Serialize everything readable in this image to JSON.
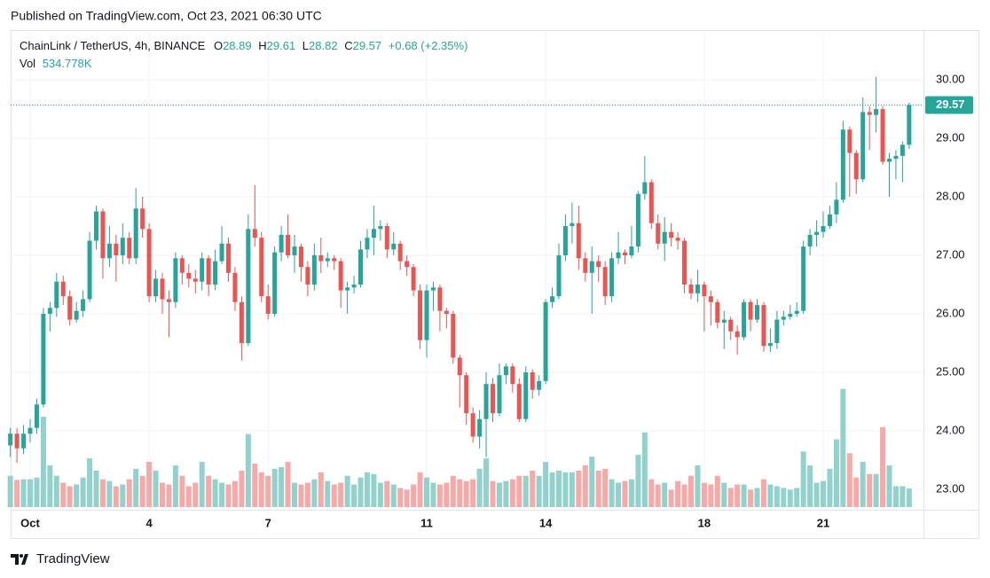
{
  "published": "Published on TradingView.com, Oct 23, 2021 06:30 UTC",
  "brand": "TradingView",
  "chart_data": {
    "type": "candlestick",
    "title": "ChainLink / TetherUS, 4h, BINANCE",
    "ohlc_labels": {
      "open": "O",
      "high": "H",
      "low": "L",
      "close": "C"
    },
    "change_label": "+0.68",
    "change_pct_label": "(+2.35%)",
    "volume_label": "Vol",
    "volume_value_label": "534.778K",
    "up_color": "#26a69a",
    "down_color": "#ef5350",
    "up_volume_color": "#92d2cc",
    "down_volume_color": "#f7a9a7",
    "grid": true,
    "ylim": [
      22.65,
      30.85
    ],
    "yticks": [
      {
        "value": 23,
        "label": "23.00"
      },
      {
        "value": 24,
        "label": "24.00"
      },
      {
        "value": 25,
        "label": "25.00"
      },
      {
        "value": 26,
        "label": "26.00"
      },
      {
        "value": 27,
        "label": "27.00"
      },
      {
        "value": 28,
        "label": "28.00"
      },
      {
        "value": 29,
        "label": "29.00"
      },
      {
        "value": 30,
        "label": "30.00"
      }
    ],
    "categories": [
      null,
      null,
      null,
      "Oct",
      null,
      null,
      null,
      null,
      null,
      null,
      null,
      null,
      null,
      null,
      null,
      null,
      null,
      null,
      null,
      null,
      null,
      "4",
      null,
      null,
      null,
      null,
      null,
      null,
      null,
      null,
      null,
      null,
      null,
      null,
      null,
      null,
      null,
      null,
      null,
      "7",
      null,
      null,
      null,
      null,
      null,
      null,
      null,
      null,
      null,
      null,
      null,
      null,
      null,
      null,
      null,
      null,
      null,
      null,
      null,
      null,
      null,
      null,
      null,
      "11",
      null,
      null,
      null,
      null,
      null,
      null,
      null,
      null,
      null,
      null,
      null,
      null,
      null,
      null,
      null,
      null,
      null,
      "14",
      null,
      null,
      null,
      null,
      null,
      null,
      null,
      null,
      null,
      null,
      null,
      null,
      null,
      null,
      null,
      null,
      null,
      null,
      null,
      null,
      null,
      null,
      null,
      "18",
      null,
      null,
      null,
      null,
      null,
      null,
      null,
      null,
      null,
      null,
      null,
      null,
      null,
      null,
      null,
      null,
      null,
      "21",
      null,
      null,
      null,
      null,
      null,
      null,
      null,
      null,
      null,
      null,
      null,
      null,
      null
    ],
    "open": [
      23.75,
      23.95,
      23.7,
      23.95,
      24.05,
      24.45,
      26.0,
      26.1,
      26.55,
      26.3,
      25.9,
      26.05,
      26.25,
      27.25,
      27.75,
      26.95,
      27.2,
      27.0,
      27.3,
      26.95,
      27.8,
      27.45,
      26.3,
      26.6,
      26.25,
      26.2,
      26.95,
      26.7,
      26.6,
      26.55,
      26.95,
      26.5,
      26.9,
      27.2,
      26.7,
      26.2,
      25.5,
      27.45,
      27.3,
      26.3,
      26.0,
      27.05,
      27.35,
      27.0,
      27.15,
      26.8,
      26.5,
      27.0,
      26.9,
      26.95,
      26.9,
      26.4,
      26.45,
      26.5,
      27.1,
      27.3,
      27.45,
      27.5,
      27.1,
      27.2,
      26.9,
      26.8,
      26.4,
      25.55,
      26.4,
      26.45,
      26.05,
      26.0,
      25.25,
      24.95,
      24.3,
      23.9,
      24.2,
      24.8,
      24.3,
      24.95,
      25.1,
      24.8,
      24.2,
      25.0,
      24.7,
      24.85,
      26.2,
      26.3,
      27.0,
      27.5,
      27.55,
      26.95,
      26.7,
      26.9,
      26.8,
      26.3,
      26.95,
      27.05,
      27.0,
      27.15,
      28.05,
      28.25,
      27.55,
      27.2,
      27.4,
      27.3,
      27.25,
      26.5,
      26.35,
      26.5,
      26.3,
      26.2,
      25.85,
      25.9,
      25.7,
      25.6,
      26.2,
      25.9,
      26.15,
      25.45,
      25.5,
      25.9,
      25.95,
      26.0,
      26.05,
      27.15,
      27.35,
      27.4,
      27.5,
      27.7,
      27.95,
      29.15,
      28.75,
      28.3,
      29.45,
      29.4,
      29.5,
      28.6,
      28.65,
      28.7,
      28.89
    ],
    "high": [
      24.05,
      24.05,
      24.1,
      24.2,
      24.55,
      26.1,
      26.2,
      26.7,
      26.65,
      26.4,
      26.2,
      26.4,
      27.4,
      27.85,
      27.8,
      27.5,
      27.35,
      27.55,
      27.4,
      28.15,
      28.0,
      27.55,
      26.75,
      26.7,
      26.4,
      27.05,
      27.0,
      26.85,
      26.75,
      27.05,
      27.0,
      27.1,
      27.5,
      27.3,
      26.8,
      26.3,
      27.7,
      28.2,
      27.4,
      26.5,
      27.15,
      27.5,
      27.7,
      27.35,
      27.2,
      26.9,
      27.2,
      27.3,
      27.05,
      27.0,
      26.95,
      26.55,
      26.65,
      27.25,
      27.45,
      27.85,
      27.6,
      27.55,
      27.4,
      27.25,
      27.0,
      26.85,
      26.5,
      26.5,
      26.55,
      26.5,
      26.1,
      26.05,
      25.3,
      25.0,
      24.4,
      24.35,
      25.0,
      24.9,
      25.15,
      25.15,
      25.15,
      24.9,
      25.1,
      25.05,
      24.95,
      26.25,
      26.45,
      27.2,
      27.7,
      27.9,
      27.85,
      27.05,
      27.15,
      27.0,
      26.9,
      27.05,
      27.4,
      27.1,
      27.5,
      28.1,
      28.7,
      28.3,
      27.7,
      27.65,
      27.55,
      27.4,
      27.3,
      26.6,
      26.75,
      26.55,
      26.4,
      26.25,
      26.05,
      25.95,
      25.8,
      26.25,
      26.25,
      26.25,
      26.2,
      25.75,
      26.05,
      26.05,
      26.15,
      26.2,
      27.25,
      27.45,
      27.6,
      27.75,
      27.85,
      28.25,
      29.3,
      29.2,
      28.8,
      29.7,
      29.55,
      30.05,
      29.55,
      28.75,
      28.8,
      28.95,
      29.61
    ],
    "low": [
      23.55,
      23.45,
      23.6,
      23.8,
      23.95,
      24.4,
      25.7,
      25.95,
      26.15,
      25.8,
      25.85,
      25.95,
      26.2,
      27.1,
      26.6,
      26.8,
      26.55,
      26.85,
      26.85,
      26.85,
      27.3,
      26.2,
      26.2,
      26.0,
      25.6,
      26.1,
      26.5,
      26.45,
      26.35,
      26.4,
      26.3,
      26.4,
      26.85,
      26.55,
      26.05,
      25.2,
      25.45,
      27.15,
      26.2,
      25.9,
      25.95,
      26.9,
      26.95,
      26.7,
      26.55,
      26.3,
      26.4,
      26.7,
      26.8,
      26.75,
      26.1,
      26.0,
      26.35,
      26.45,
      26.95,
      27.0,
      27.25,
      26.95,
      27.0,
      26.75,
      26.65,
      26.3,
      25.4,
      25.25,
      26.05,
      25.7,
      25.75,
      25.15,
      24.4,
      24.1,
      23.8,
      23.7,
      23.55,
      24.15,
      24.25,
      24.8,
      24.65,
      24.15,
      24.15,
      24.55,
      24.6,
      24.8,
      26.1,
      26.25,
      26.9,
      27.2,
      26.75,
      26.55,
      26.0,
      26.55,
      26.15,
      26.2,
      26.85,
      26.85,
      26.95,
      27.05,
      27.95,
      27.45,
      27.1,
      26.9,
      27.15,
      27.1,
      26.35,
      26.25,
      26.2,
      25.7,
      25.8,
      25.75,
      25.4,
      25.55,
      25.3,
      25.55,
      25.7,
      25.85,
      25.35,
      25.35,
      25.4,
      25.8,
      25.9,
      25.95,
      26.0,
      27.0,
      27.15,
      27.3,
      27.45,
      27.55,
      27.9,
      28.0,
      28.05,
      28.25,
      28.8,
      29.1,
      28.55,
      28.0,
      28.3,
      28.25,
      28.82
    ],
    "close": [
      23.95,
      23.7,
      23.95,
      24.05,
      24.45,
      26.0,
      26.1,
      26.55,
      26.3,
      25.9,
      26.05,
      26.25,
      27.25,
      27.75,
      26.95,
      27.2,
      27.0,
      27.3,
      26.95,
      27.8,
      27.45,
      26.3,
      26.6,
      26.25,
      26.2,
      26.95,
      26.7,
      26.6,
      26.55,
      26.95,
      26.5,
      26.9,
      27.2,
      26.7,
      26.2,
      25.5,
      27.45,
      27.3,
      26.3,
      26.0,
      27.05,
      27.35,
      27.0,
      27.15,
      26.8,
      26.5,
      27.0,
      26.9,
      26.95,
      26.9,
      26.4,
      26.45,
      26.5,
      27.1,
      27.3,
      27.45,
      27.5,
      27.1,
      27.2,
      26.9,
      26.8,
      26.4,
      25.55,
      26.4,
      26.45,
      26.05,
      26.0,
      25.25,
      24.95,
      24.3,
      23.9,
      24.2,
      24.8,
      24.3,
      24.95,
      25.1,
      24.8,
      24.2,
      25.0,
      24.7,
      24.85,
      26.2,
      26.3,
      27.0,
      27.5,
      27.55,
      26.95,
      26.7,
      26.9,
      26.8,
      26.3,
      26.95,
      27.05,
      27.0,
      27.15,
      28.05,
      28.25,
      27.55,
      27.2,
      27.4,
      27.3,
      27.25,
      26.5,
      26.35,
      26.5,
      26.3,
      26.2,
      25.85,
      25.9,
      25.7,
      25.6,
      26.2,
      25.9,
      26.15,
      25.45,
      25.5,
      25.9,
      25.95,
      26.0,
      26.05,
      27.15,
      27.35,
      27.4,
      27.5,
      27.7,
      27.95,
      29.15,
      28.75,
      28.3,
      29.45,
      29.4,
      29.5,
      28.6,
      28.65,
      28.7,
      28.89,
      29.57
    ],
    "volume": [
      900000,
      780000,
      800000,
      800000,
      850000,
      2600000,
      1200000,
      900000,
      700000,
      600000,
      650000,
      850000,
      1400000,
      1050000,
      800000,
      750000,
      600000,
      650000,
      800000,
      1100000,
      900000,
      1300000,
      1050000,
      700000,
      650000,
      1200000,
      900000,
      600000,
      700000,
      1300000,
      900000,
      800000,
      700000,
      650000,
      750000,
      1050000,
      2100000,
      1250000,
      1000000,
      900000,
      1100000,
      1150000,
      1300000,
      700000,
      650000,
      700000,
      800000,
      1000000,
      750000,
      650000,
      700000,
      900000,
      650000,
      850000,
      1000000,
      950000,
      700000,
      750000,
      650000,
      550000,
      500000,
      650000,
      1000000,
      850000,
      700000,
      650000,
      700000,
      900000,
      800000,
      750000,
      800000,
      1100000,
      1400000,
      750000,
      700000,
      750000,
      800000,
      900000,
      900000,
      1050000,
      900000,
      1300000,
      1000000,
      1050000,
      1000000,
      1000000,
      1050000,
      1200000,
      1450000,
      1050000,
      1100000,
      800000,
      700000,
      750000,
      800000,
      1500000,
      2150000,
      800000,
      650000,
      700000,
      500000,
      750000,
      650000,
      900000,
      1200000,
      700000,
      650000,
      900000,
      700000,
      550000,
      650000,
      650000,
      500000,
      550000,
      800000,
      650000,
      600000,
      550000,
      500000,
      550000,
      1600000,
      1200000,
      700000,
      750000,
      1100000,
      1950000,
      3400000,
      1550000,
      850000,
      1300000,
      950000,
      950000,
      2300000,
      1200000,
      600000,
      600000,
      534778
    ]
  }
}
